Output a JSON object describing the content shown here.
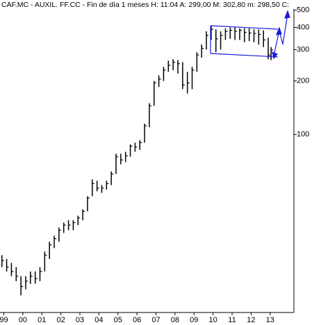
{
  "chart_data": {
    "type": "ohlc",
    "title": "CAF.MC - AUXIL. FF.CC - Fin de día 1 meses H: 11:04 A: 299,00 M: 302,80 m: 298,50 C:",
    "log_scale": true,
    "color": "#000000",
    "x": [
      1998.9,
      1999.15,
      1999.4,
      1999.65,
      1999.9,
      2000.15,
      2000.4,
      2000.65,
      2000.9,
      2001.15,
      2001.4,
      2001.65,
      2001.9,
      2002.15,
      2002.4,
      2002.65,
      2002.9,
      2003.15,
      2003.4,
      2003.65,
      2003.9,
      2004.15,
      2004.4,
      2004.65,
      2004.9,
      2005.15,
      2005.4,
      2005.65,
      2005.9,
      2006.15,
      2006.4,
      2006.65,
      2006.9,
      2007.15,
      2007.4,
      2007.65,
      2007.9,
      2008.15,
      2008.4,
      2008.65,
      2008.9,
      2009.15,
      2009.4,
      2009.65,
      2009.9,
      2010.15,
      2010.4,
      2010.65,
      2010.9,
      2011.15,
      2011.4,
      2011.65,
      2011.9,
      2012.15,
      2012.4,
      2012.65,
      2012.9,
      2013.05
    ],
    "high": [
      21,
      20,
      19,
      18,
      16,
      16,
      17,
      17,
      18,
      22,
      25,
      27,
      30,
      32,
      33,
      33,
      35,
      38,
      45,
      56,
      55,
      52,
      55,
      62,
      78,
      78,
      80,
      88,
      90,
      93,
      115,
      150,
      200,
      215,
      240,
      260,
      265,
      262,
      255,
      225,
      240,
      290,
      320,
      380,
      410,
      390,
      380,
      395,
      400,
      400,
      395,
      395,
      395,
      390,
      390,
      385,
      350,
      310
    ],
    "low": [
      18,
      17,
      16,
      15,
      12.5,
      13.5,
      14.5,
      14.5,
      15,
      17,
      20,
      23,
      25,
      28,
      29,
      29,
      31,
      33,
      37,
      45,
      48,
      47,
      49,
      52,
      60,
      68,
      70,
      75,
      80,
      82,
      90,
      110,
      145,
      185,
      200,
      225,
      230,
      220,
      180,
      170,
      180,
      225,
      270,
      300,
      340,
      290,
      300,
      340,
      345,
      340,
      340,
      330,
      335,
      330,
      320,
      310,
      265,
      262
    ],
    "close": [
      19.6,
      18,
      17,
      16,
      14,
      15,
      16,
      15.5,
      17,
      21,
      24,
      26,
      29,
      31,
      31,
      32,
      34,
      37,
      44,
      53,
      50,
      50,
      53,
      60,
      75,
      72,
      76,
      86,
      85,
      90,
      112,
      145,
      195,
      205,
      230,
      245,
      255,
      250,
      190,
      195,
      230,
      280,
      305,
      360,
      390,
      345,
      360,
      380,
      385,
      380,
      385,
      375,
      372,
      370,
      365,
      340,
      280,
      299
    ],
    "xlim": [
      1998.8,
      2014.25
    ],
    "xticks": [
      {
        "value": 1999,
        "label": "99"
      },
      {
        "value": 2000,
        "label": "00"
      },
      {
        "value": 2001,
        "label": "01"
      },
      {
        "value": 2002,
        "label": "02"
      },
      {
        "value": 2003,
        "label": "03"
      },
      {
        "value": 2004,
        "label": "04"
      },
      {
        "value": 2005,
        "label": "05"
      },
      {
        "value": 2006,
        "label": "06"
      },
      {
        "value": 2007,
        "label": "07"
      },
      {
        "value": 2008,
        "label": "08"
      },
      {
        "value": 2009,
        "label": "09"
      },
      {
        "value": 2010,
        "label": "10"
      },
      {
        "value": 2011,
        "label": "11"
      },
      {
        "value": 2012,
        "label": "12"
      },
      {
        "value": 2013,
        "label": "13"
      }
    ],
    "ylim": [
      10,
      570
    ],
    "yticks": [
      100,
      200,
      300,
      400,
      500
    ]
  }
}
